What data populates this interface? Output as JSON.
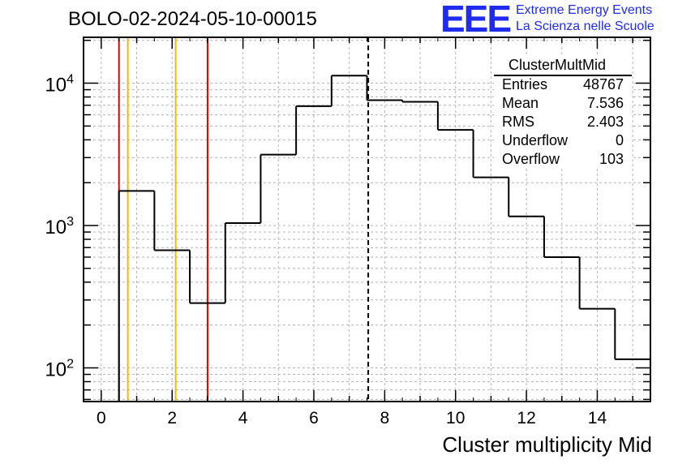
{
  "title": "BOLO-02-2024-05-10-00015",
  "logo": {
    "mark": "EEE",
    "line1": "Extreme Energy Events",
    "line2": "La Scienza nelle Scuole",
    "color": "#1f2cf0"
  },
  "stats": {
    "title": "ClusterMultMid",
    "rows": [
      {
        "key": "Entries",
        "value": "48767"
      },
      {
        "key": "Mean",
        "value": "7.536"
      },
      {
        "key": "RMS",
        "value": "2.403"
      },
      {
        "key": "Underflow",
        "value": "0"
      },
      {
        "key": "Overflow",
        "value": "103"
      }
    ]
  },
  "chart_data": {
    "type": "bar",
    "style": "step-histogram",
    "title": "BOLO-02-2024-05-10-00015",
    "xlabel": "Cluster multiplicity Mid",
    "ylabel": "",
    "log_y": true,
    "grid": true,
    "xlim": [
      -0.5,
      15.5
    ],
    "ylim": [
      58,
      21000
    ],
    "x_ticks": [
      0,
      2,
      4,
      6,
      8,
      10,
      12,
      14
    ],
    "y_ticks": [
      {
        "value": 100,
        "label": "10",
        "exp": "2"
      },
      {
        "value": 1000,
        "label": "10",
        "exp": "3"
      },
      {
        "value": 10000,
        "label": "10",
        "exp": "4"
      }
    ],
    "bin_edges": [
      -0.5,
      0.5,
      1.5,
      2.5,
      3.5,
      4.5,
      5.5,
      6.5,
      7.5,
      8.5,
      9.5,
      10.5,
      11.5,
      12.5,
      13.5,
      14.5,
      15.5
    ],
    "values": [
      0,
      1750,
      670,
      285,
      1040,
      3150,
      6900,
      11300,
      7600,
      7400,
      4700,
      2180,
      1160,
      600,
      260,
      115
    ],
    "line_color": "#000000",
    "vertical_markers": [
      {
        "x": 0.5,
        "color": "#e00000",
        "style": "solid"
      },
      {
        "x": 0.75,
        "color": "#f5b800",
        "style": "solid"
      },
      {
        "x": 2.1,
        "color": "#f5b800",
        "style": "solid"
      },
      {
        "x": 3.0,
        "color": "#e00000",
        "style": "solid"
      },
      {
        "x": 7.536,
        "color": "#000000",
        "style": "dashed"
      }
    ]
  }
}
